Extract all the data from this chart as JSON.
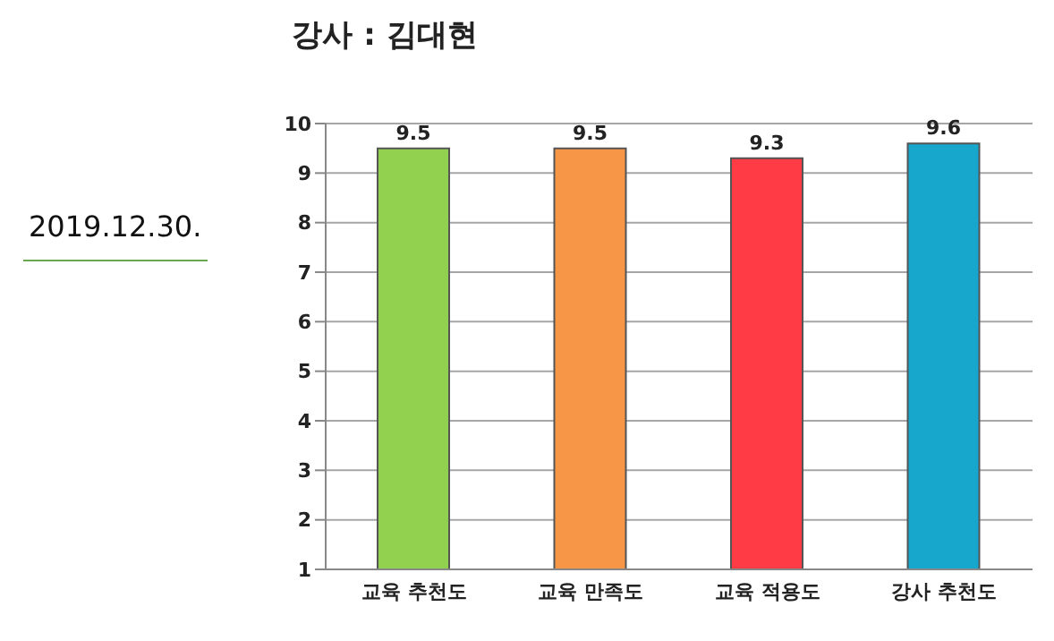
{
  "chart_data": {
    "type": "bar",
    "title": "강사 : 김대현",
    "annotations": [
      "2019.12.30."
    ],
    "categories": [
      "교육 추천도",
      "교육 만족도",
      "교육 적용도",
      "강사 추천도"
    ],
    "values": [
      9.5,
      9.5,
      9.3,
      9.6
    ],
    "colors": [
      "#92d050",
      "#f79646",
      "#ff3b45",
      "#17a7cc"
    ],
    "ylim": [
      1,
      10
    ],
    "yticks": [
      1,
      2,
      3,
      4,
      5,
      6,
      7,
      8,
      9,
      10
    ],
    "grid": "y",
    "data_labels": true
  }
}
